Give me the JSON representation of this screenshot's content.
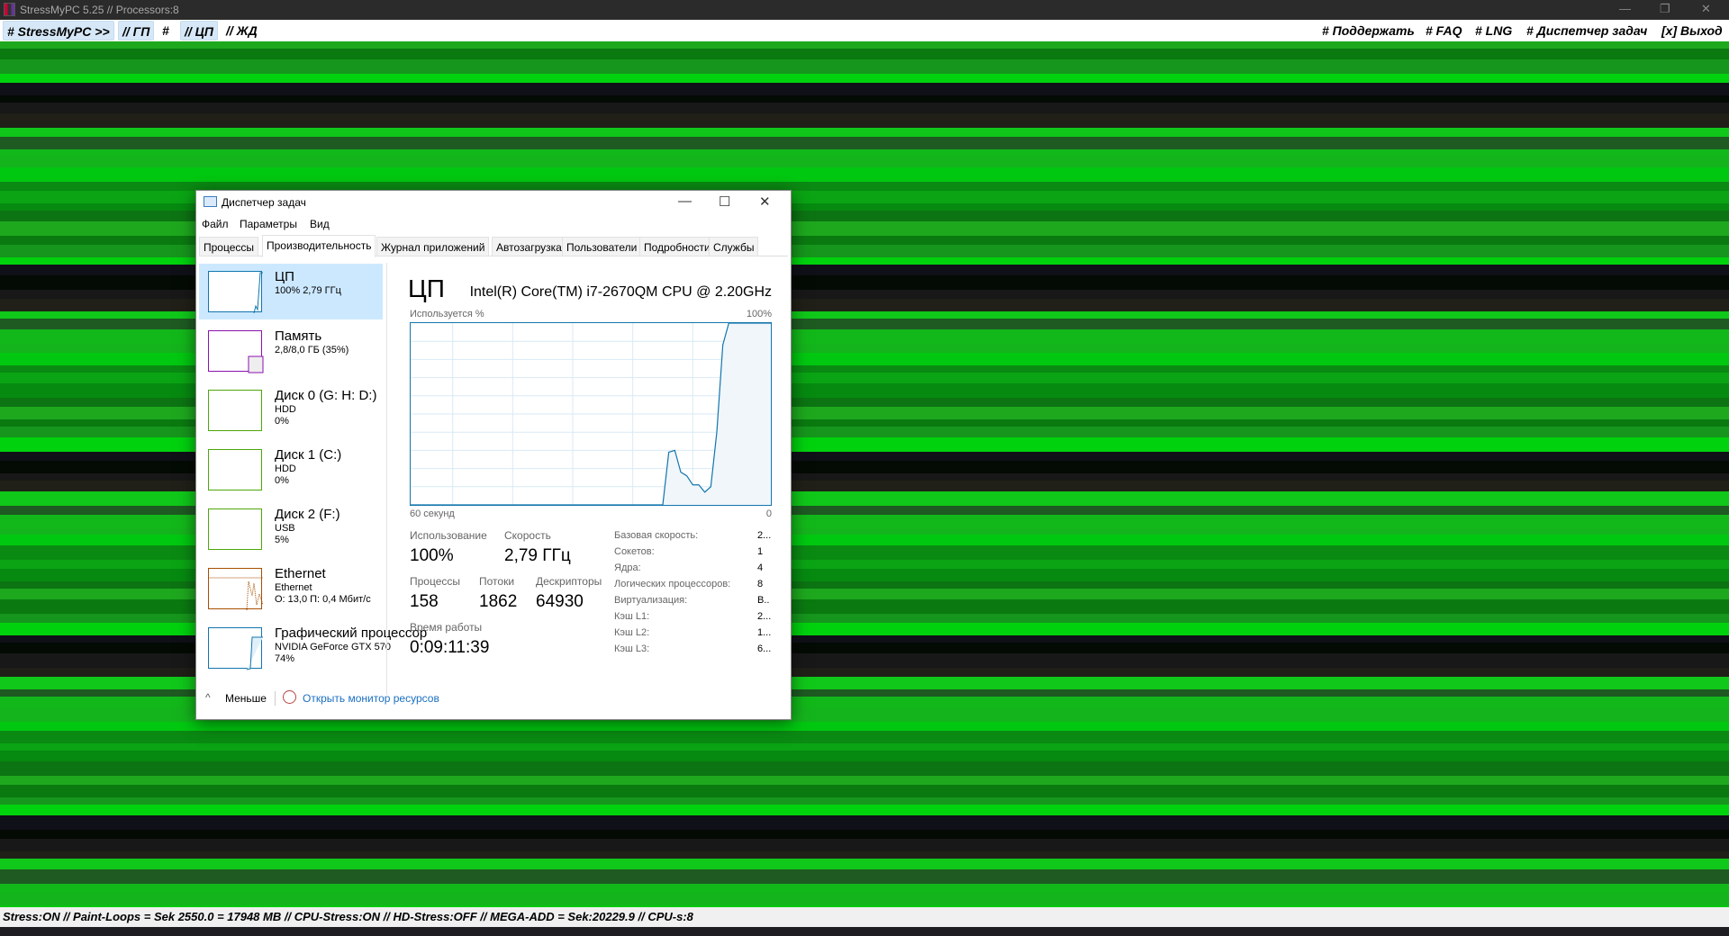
{
  "app": {
    "title": "StressMyPC 5.25 // Processors:8"
  },
  "menubar": {
    "left": [
      "# StressMyPC >>",
      "// ГП",
      "#",
      "// ЦП",
      "// ЖД"
    ],
    "right": [
      "# Поддержать",
      "# FAQ",
      "# LNG",
      "# Диспетчер задач",
      "[x] Выход"
    ]
  },
  "status": "Stress:ON // Paint-Loops = Sek 2550.0 = 17948 MB // CPU-Stress:ON // HD-Stress:OFF // MEGA-ADD = Sek:20229.9 // CPU-s:8",
  "colors": {
    "stripes": [
      "#0a8a12",
      "#00d20e",
      "#12b81a",
      "#1ea81e",
      "#202018",
      "#0aa414",
      "#101018",
      "#14b41c",
      "#0a7a10",
      "#10c81a",
      "#068a10",
      "#040a04",
      "#00c810",
      "#16961c",
      "#1e5a22",
      "#0c7412",
      "#181818"
    ],
    "cpu": "#1176ad",
    "memory": "#8b12ae",
    "disk": "#4da60c",
    "ethernet": "#a74f01",
    "gpu": "#1176ad"
  },
  "taskmanager": {
    "title": "Диспетчер задач",
    "menu": [
      "Файл",
      "Параметры",
      "Вид"
    ],
    "tabs": [
      "Процессы",
      "Производительность",
      "Журнал приложений",
      "Автозагрузка",
      "Пользователи",
      "Подробности",
      "Службы"
    ],
    "active_tab": "Производительность",
    "sidebar": [
      {
        "name": "ЦП",
        "sub": [
          "100% 2,79 ГГц"
        ]
      },
      {
        "name": "Память",
        "sub": [
          "2,8/8,0 ГБ (35%)"
        ]
      },
      {
        "name": "Диск 0 (G: H: D:)",
        "sub": [
          "HDD",
          "0%"
        ]
      },
      {
        "name": "Диск 1 (C:)",
        "sub": [
          "HDD",
          "0%"
        ]
      },
      {
        "name": "Диск 2 (F:)",
        "sub": [
          "USB",
          "5%"
        ]
      },
      {
        "name": "Ethernet",
        "sub": [
          "Ethernet",
          "О: 13,0 П: 0,4 Мбит/с"
        ]
      },
      {
        "name": "Графический процессор",
        "sub": [
          "NVIDIA GeForce GTX 570",
          "74%"
        ]
      }
    ],
    "cpu": {
      "heading": "ЦП",
      "model": "Intel(R) Core(TM) i7-2670QM CPU @ 2.20GHz",
      "stats": {
        "usage_label": "Использование",
        "usage": "100%",
        "speed_label": "Скорость",
        "speed": "2,79 ГГц",
        "proc_label": "Процессы",
        "proc": "158",
        "threads_label": "Потоки",
        "threads": "1862",
        "handles_label": "Дескрипторы",
        "handles": "64930",
        "uptime_label": "Время работы",
        "uptime": "0:09:11:39"
      },
      "specs": [
        [
          "Базовая скорость:",
          "2..."
        ],
        [
          "Сокетов:",
          "1"
        ],
        [
          "Ядра:",
          "4"
        ],
        [
          "Логических процессоров:",
          "8"
        ],
        [
          "Виртуализация:",
          "В.."
        ],
        [
          "Кэш L1:",
          "2..."
        ],
        [
          "Кэш L2:",
          "1..."
        ],
        [
          "Кэш L3:",
          "6..."
        ]
      ]
    },
    "footer": {
      "less": "Меньше",
      "link": "Открыть монитор ресурсов"
    }
  },
  "chart_data": {
    "type": "area",
    "title": "",
    "ylabel": "Используется %",
    "ymax_label": "100%",
    "xlabel_left": "60 секунд",
    "xlabel_right": "0",
    "ylim": [
      0,
      100
    ],
    "xlim": [
      0,
      60
    ],
    "grid": true,
    "x": [
      0,
      42,
      43,
      44,
      45,
      46,
      47,
      48,
      49,
      50,
      51,
      52,
      53,
      60
    ],
    "values": [
      0,
      0,
      29,
      30,
      18,
      16,
      11,
      11,
      7,
      10,
      40,
      88,
      100,
      100
    ]
  }
}
